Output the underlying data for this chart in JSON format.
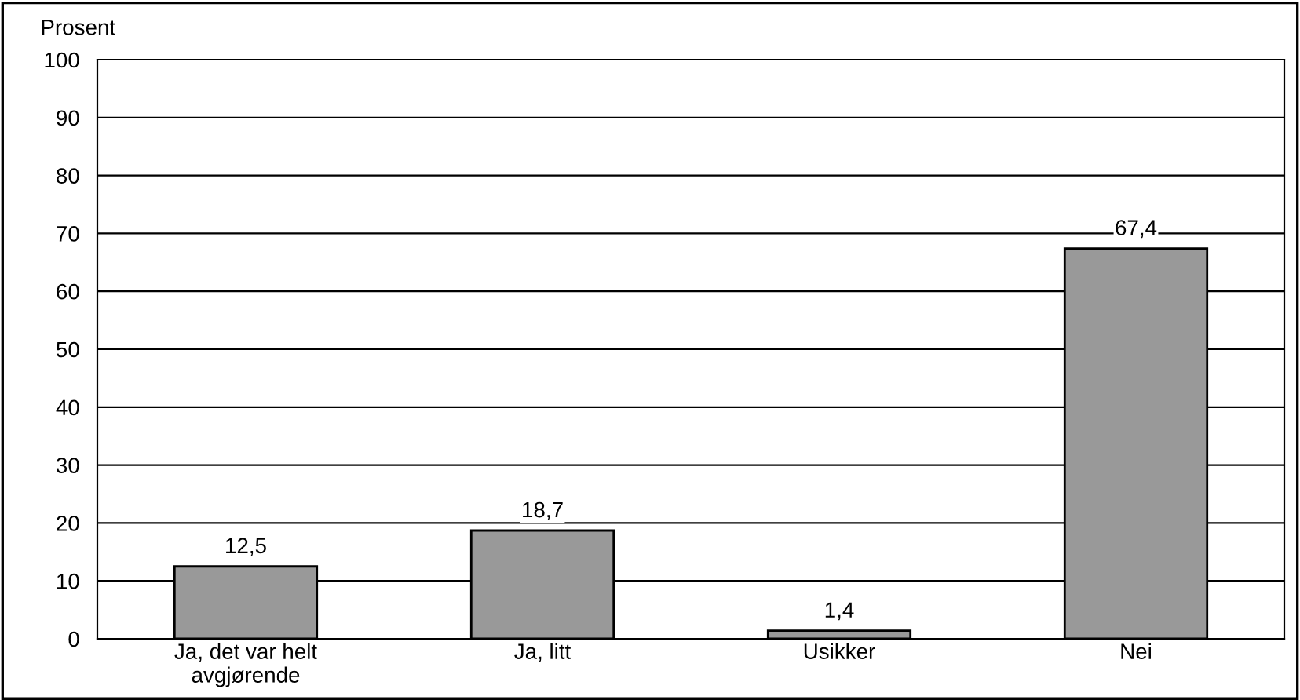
{
  "chart_data": {
    "type": "bar",
    "ylabel": "Prosent",
    "categories": [
      "Ja, det var helt\navgjørende",
      "Ja, litt",
      "Usikker",
      "Nei"
    ],
    "values": [
      12.5,
      18.7,
      1.4,
      67.4
    ],
    "value_labels": [
      "12,5",
      "18,7",
      "1,4",
      "67,4"
    ],
    "color": "#999999",
    "ylim": [
      0,
      100
    ],
    "yticks": [
      0,
      10,
      20,
      30,
      40,
      50,
      60,
      70,
      80,
      90,
      100
    ],
    "grid": "y",
    "legend": false
  }
}
